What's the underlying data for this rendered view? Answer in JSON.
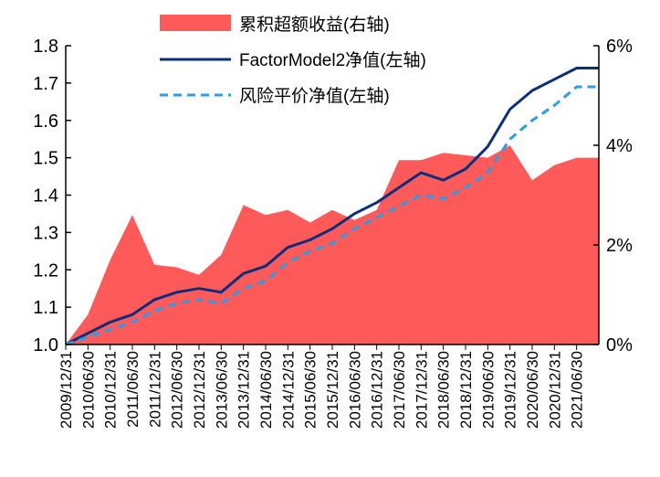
{
  "chart_data": {
    "type": "line",
    "x_dates": [
      "2009/12/31",
      "2010/06/30",
      "2010/12/31",
      "2011/06/30",
      "2011/12/31",
      "2012/06/30",
      "2012/12/31",
      "2013/06/30",
      "2013/12/31",
      "2014/06/30",
      "2014/12/31",
      "2015/06/30",
      "2015/12/31",
      "2016/06/30",
      "2016/12/31",
      "2017/06/30",
      "2017/12/31",
      "2018/06/30",
      "2018/12/31",
      "2019/06/30",
      "2019/12/31",
      "2020/06/30",
      "2020/12/31",
      "2021/06/30"
    ],
    "left_axis": {
      "ylim": [
        1.0,
        1.8
      ],
      "ticks": [
        "1.0",
        "1.1",
        "1.2",
        "1.3",
        "1.4",
        "1.5",
        "1.6",
        "1.7",
        "1.8"
      ]
    },
    "right_axis": {
      "ylim": [
        0,
        6
      ],
      "ticks": [
        "0%",
        "2%",
        "4%",
        "6%"
      ]
    },
    "legend_position": "top-center",
    "series": [
      {
        "name": "累积超额收益(右轴)",
        "kind": "area",
        "axis": "right",
        "color": "#ff5a5a",
        "unit": "%",
        "values": [
          0.0,
          0.6,
          1.7,
          2.6,
          1.6,
          1.55,
          1.4,
          1.8,
          2.8,
          2.6,
          2.7,
          2.45,
          2.7,
          2.5,
          2.7,
          3.7,
          3.7,
          3.85,
          3.8,
          3.75,
          4.0,
          3.3,
          3.6,
          3.75
        ]
      },
      {
        "name": "FactorModel2净值(左轴)",
        "kind": "line",
        "axis": "left",
        "color": "#0b2f7a",
        "values": [
          1.0,
          1.03,
          1.06,
          1.08,
          1.12,
          1.14,
          1.15,
          1.14,
          1.19,
          1.21,
          1.26,
          1.28,
          1.31,
          1.35,
          1.38,
          1.42,
          1.46,
          1.44,
          1.47,
          1.53,
          1.63,
          1.68,
          1.71,
          1.74
        ]
      },
      {
        "name": "风险平价净值(左轴)",
        "kind": "line",
        "axis": "left",
        "color": "#2a9ee2",
        "dashed": true,
        "values": [
          1.0,
          1.02,
          1.04,
          1.06,
          1.09,
          1.11,
          1.12,
          1.11,
          1.15,
          1.17,
          1.22,
          1.25,
          1.27,
          1.31,
          1.34,
          1.37,
          1.4,
          1.39,
          1.42,
          1.46,
          1.55,
          1.6,
          1.64,
          1.69
        ]
      }
    ]
  }
}
